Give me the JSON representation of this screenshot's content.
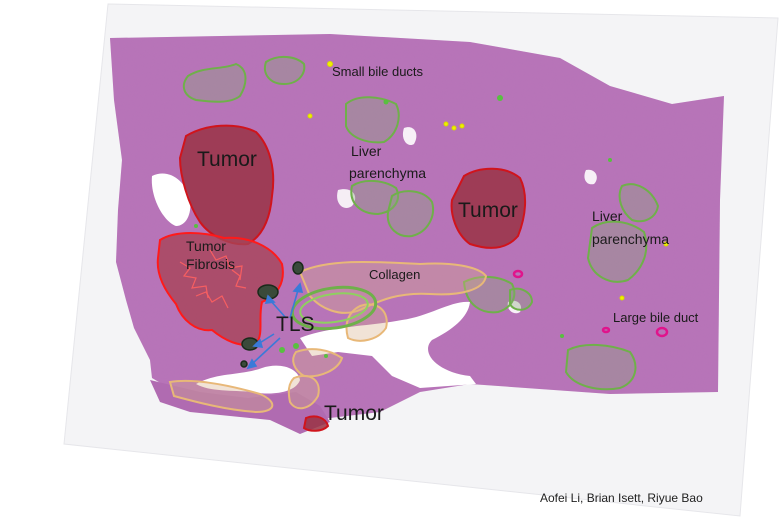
{
  "labels": {
    "tumor_top": "Tumor",
    "tumor_mid": "Tumor",
    "tumor_bottom": "Tumor",
    "tumor_fibrosis_line1": "Tumor",
    "tumor_fibrosis_line2": "Fibrosis",
    "small_bile_ducts": "Small bile ducts",
    "liver_parenchyma_left_line1": "Liver",
    "liver_parenchyma_left_line2": "parenchyma",
    "liver_parenchyma_right_line1": "Liver",
    "liver_parenchyma_right_line2": "parenchyma",
    "collagen": "Collagen",
    "tls": "TLS",
    "large_bile_duct": "Large bile duct"
  },
  "credit": "Aofei Li, Brian Isett, Riyue Bao",
  "colors": {
    "tissue": "#b56bb4",
    "tissue_dark": "#8f4a93",
    "tumor_fill": "#9a3344",
    "tumor_outline": "#d0141c",
    "fibrosis_outline": "#ff1a1a",
    "parenchyma_outline": "#6fb04a",
    "collagen_outline": "#e0b070",
    "tls_outline": "#2a3a2a",
    "bile_duct_small": "#e8e800",
    "bile_duct_large": "#e0148c",
    "arrow": "#3a7ad8"
  }
}
